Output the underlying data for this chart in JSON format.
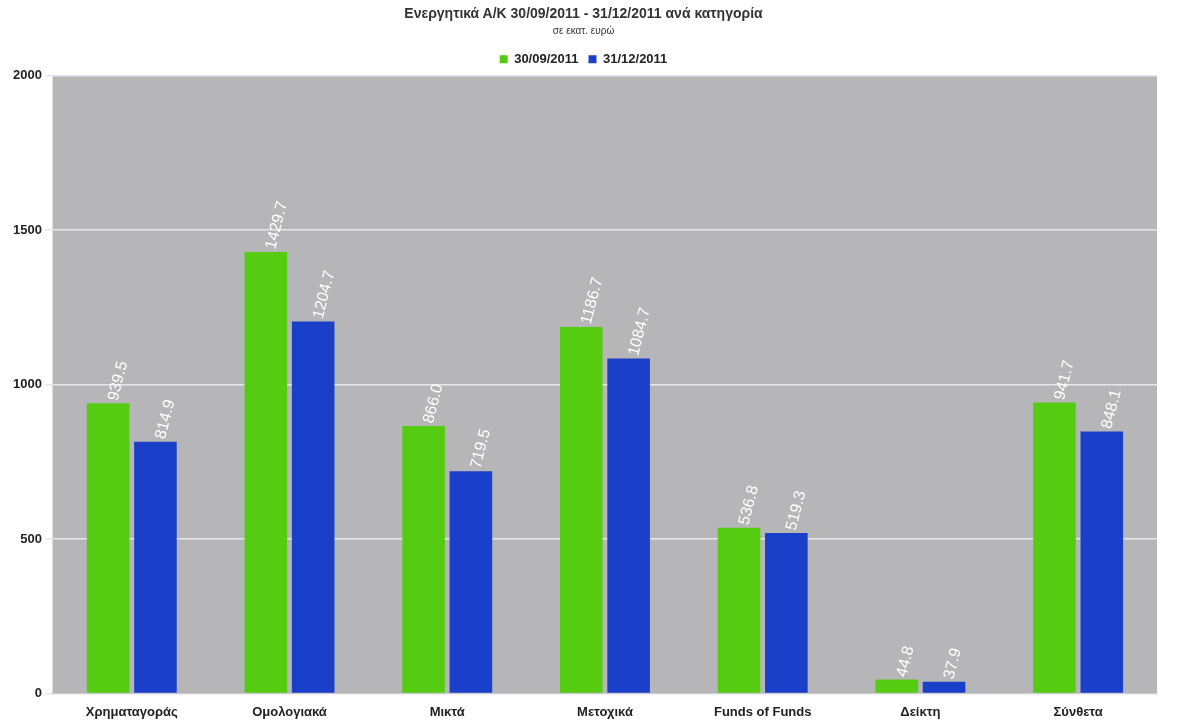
{
  "chart_data": {
    "type": "bar",
    "title": "Ενεργητικά Α/Κ 30/09/2011 - 31/12/2011 ανά κατηγορία",
    "subtitle": "σε εκατ. ευρώ",
    "categories": [
      "Χρηματαγοράς",
      "Ομολογιακά",
      "Μικτά",
      "Μετοχικά",
      "Funds of Funds",
      "Δείκτη",
      "Σύνθετα"
    ],
    "series": [
      {
        "name": "30/09/2011",
        "color": "#55cc11",
        "values": [
          939.5,
          1429.7,
          866.0,
          1186.7,
          536.8,
          44.8,
          941.7
        ],
        "value_labels": [
          "939.5",
          "1429.7",
          "866.0",
          "1186.7",
          "536.8",
          "44.8",
          "941.7"
        ]
      },
      {
        "name": "31/12/2011",
        "color": "#1a3fc8",
        "values": [
          814.9,
          1204.7,
          719.5,
          1084.7,
          519.3,
          37.9,
          848.1
        ],
        "value_labels": [
          "814.9",
          "1204.7",
          "719.5",
          "1084.7",
          "519.3",
          "37.9",
          "848.1"
        ]
      }
    ],
    "ylim": [
      0,
      2000
    ],
    "yticks": [
      0,
      500,
      1000,
      1500,
      2000
    ],
    "grid": "y",
    "legend": "top"
  }
}
